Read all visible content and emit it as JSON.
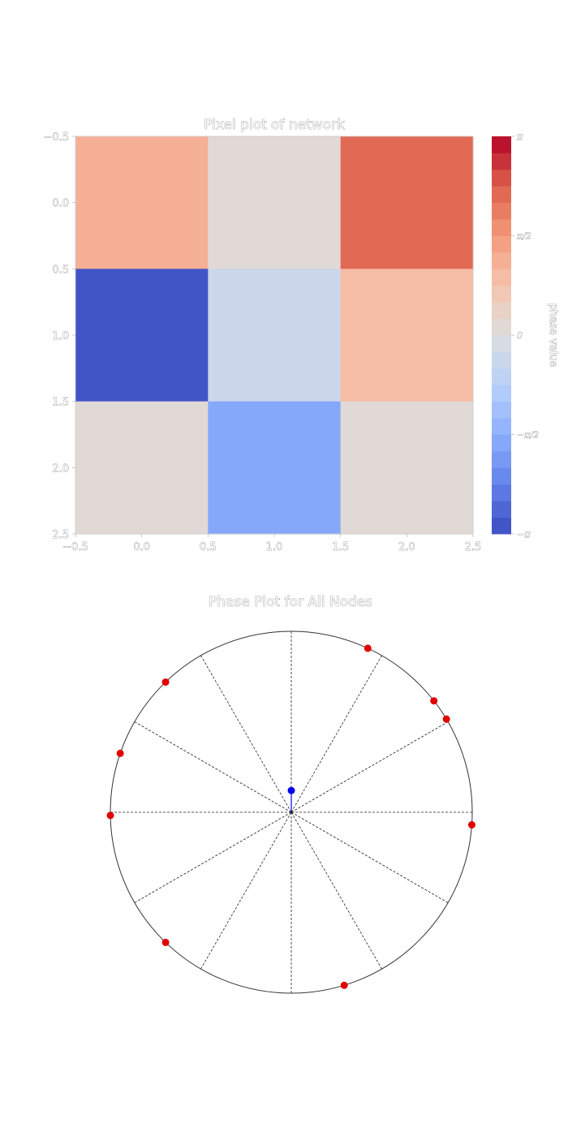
{
  "chart_data": [
    {
      "type": "heatmap",
      "title": "Pixel plot of network",
      "rows": 3,
      "cols": 3,
      "values": [
        [
          1.25,
          0.0,
          2.2
        ],
        [
          -3.14,
          -0.45,
          1.0
        ],
        [
          0.0,
          -1.75,
          0.25
        ]
      ],
      "vmin": -3.14159,
      "vmax": 3.14159,
      "xlim": [
        -0.5,
        2.5
      ],
      "ylim": [
        2.5,
        -0.5
      ],
      "xticks": [
        "−0.5",
        "0.0",
        "0.5",
        "1.0",
        "1.5",
        "2.0",
        "2.5"
      ],
      "yticks": [
        "−0.5",
        "0.0",
        "0.5",
        "1.0",
        "1.5",
        "2.0",
        "2.5"
      ],
      "colormap": "coolwarm",
      "colorbar": {
        "label": "phase value",
        "levels": 24,
        "ticks": [
          {
            "value": 3.14159,
            "label": "π"
          },
          {
            "value": 1.5708,
            "label": "π/2"
          },
          {
            "value": 0,
            "label": "0"
          },
          {
            "value": -1.5708,
            "label": "−π/2"
          },
          {
            "value": -3.14159,
            "label": "−π"
          }
        ]
      }
    },
    {
      "type": "scatter",
      "subtype": "polar",
      "title": "Phase Plot for All Nodes",
      "radial_lines_deg": [
        0,
        30,
        60,
        90,
        120,
        150,
        180,
        210,
        240,
        270,
        300,
        330
      ],
      "points": [
        {
          "angle_deg": 65,
          "r": 1.0
        },
        {
          "angle_deg": 38,
          "r": 1.0
        },
        {
          "angle_deg": 31,
          "r": 1.0
        },
        {
          "angle_deg": -4,
          "r": 1.0
        },
        {
          "angle_deg": -73,
          "r": 1.0
        },
        {
          "angle_deg": -134,
          "r": 1.0
        },
        {
          "angle_deg": -179,
          "r": 1.0
        },
        {
          "angle_deg": 161,
          "r": 1.0
        },
        {
          "angle_deg": 134,
          "r": 1.0
        }
      ],
      "mean_vector": {
        "angle_deg": 90,
        "r": 0.12
      },
      "colors": {
        "points": "#e00000",
        "mean": "#0000ee",
        "circle": "#333333",
        "radial": "#222222"
      }
    }
  ]
}
